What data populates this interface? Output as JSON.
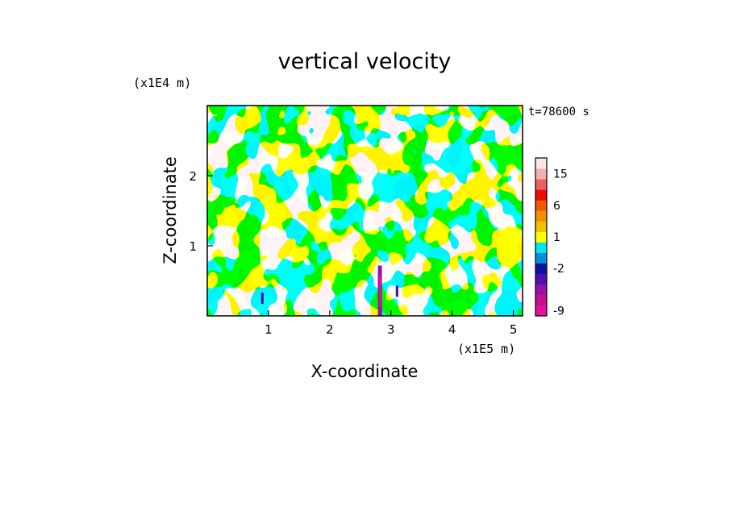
{
  "chart_data": {
    "type": "heatmap",
    "title": "vertical velocity",
    "xlabel": "X-coordinate",
    "ylabel": "Z-coordinate",
    "x_unit": "(x1E5 m)",
    "y_unit": "(x1E4 m)",
    "time_label": "t=78600 s",
    "xlim": [
      0,
      5.15
    ],
    "ylim": [
      0,
      3.0
    ],
    "x_ticks": [
      1,
      2,
      3,
      4,
      5
    ],
    "y_ticks": [
      1,
      2
    ],
    "grid": false,
    "background_color": "#00e5f0",
    "positive_color": "#ffff00",
    "colorbar": {
      "levels": [
        {
          "label": "-9",
          "color": "#e8109c"
        },
        {
          "label": "",
          "color": "#c8108c"
        },
        {
          "label": "",
          "color": "#9810a8"
        },
        {
          "label": "",
          "color": "#5010b0"
        },
        {
          "label": "-2",
          "color": "#1010a0"
        },
        {
          "label": "",
          "color": "#0090d8"
        },
        {
          "label": "",
          "color": "#00e5f0"
        },
        {
          "label": "1",
          "color": "#ffff00"
        },
        {
          "label": "",
          "color": "#f0c000"
        },
        {
          "label": "",
          "color": "#f09000"
        },
        {
          "label": "6",
          "color": "#f05800"
        },
        {
          "label": "",
          "color": "#e81000"
        },
        {
          "label": "",
          "color": "#f06060"
        },
        {
          "label": "15",
          "color": "#f4b0b0"
        },
        {
          "label": "",
          "color": "#fce4e4"
        }
      ]
    },
    "features": [
      {
        "x": 2.82,
        "z": 0.35,
        "value": -8,
        "type": "strong downdraft column"
      },
      {
        "x": 0.9,
        "z": 0.25,
        "value": -3,
        "type": "downdraft cell"
      },
      {
        "x": 3.1,
        "z": 0.35,
        "value": -3,
        "type": "downdraft cell"
      }
    ]
  }
}
